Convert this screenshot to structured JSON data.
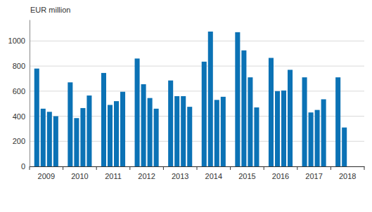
{
  "chart_data": {
    "type": "bar",
    "y_label": "EUR million",
    "categories": [
      "2009",
      "2010",
      "2011",
      "2012",
      "2013",
      "2014",
      "2015",
      "2016",
      "2017",
      "2018"
    ],
    "series": [
      {
        "color": "#0b72b5",
        "values": [
          780,
          670,
          745,
          860,
          685,
          835,
          1070,
          865,
          710,
          710
        ]
      },
      {
        "color": "#0b72b5",
        "values": [
          460,
          385,
          490,
          655,
          560,
          1075,
          925,
          600,
          430,
          310
        ]
      },
      {
        "color": "#0b72b5",
        "values": [
          435,
          465,
          520,
          545,
          560,
          530,
          710,
          605,
          450,
          null
        ]
      },
      {
        "color": "#0b72b5",
        "values": [
          400,
          565,
          595,
          460,
          475,
          555,
          470,
          770,
          535,
          null
        ]
      }
    ],
    "ylim": [
      0,
      1170
    ],
    "yticks": [
      0,
      200,
      400,
      600,
      800,
      1000
    ],
    "grid": true
  }
}
